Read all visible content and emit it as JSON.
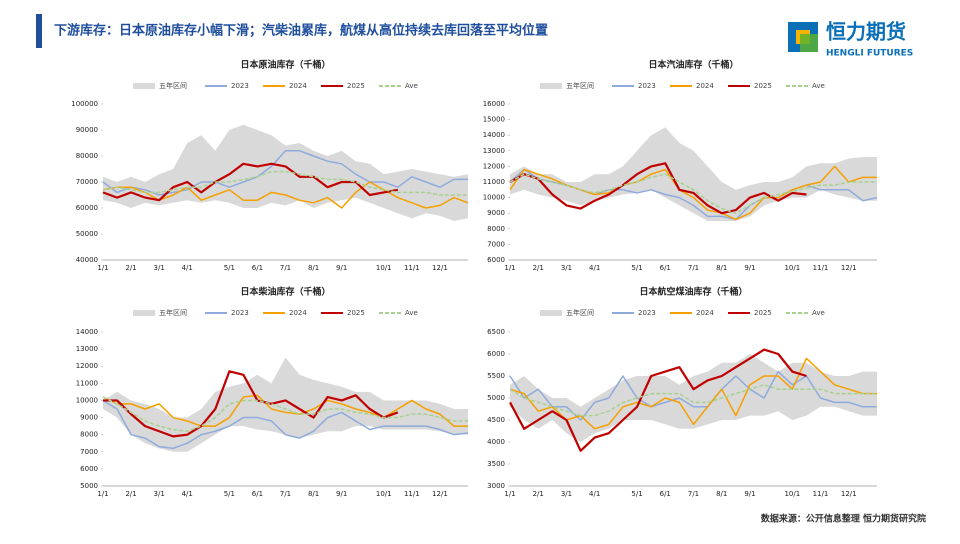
{
  "header": {
    "title": "下游库存：日本原油库存小幅下滑；汽柴油累库，航煤从高位持续去库回落至平均位置",
    "logo": "恒力期货",
    "logo_en": "HENGLI FUTURES"
  },
  "source": "数据来源：公开信息整理 恒力期货研究院",
  "chart_data": [
    {
      "type": "line",
      "title": "日本原油库存（千桶）",
      "categories": [
        "1/1",
        null,
        "2/1",
        null,
        "3/1",
        null,
        "4/1",
        null,
        null,
        "5/1",
        null,
        "6/1",
        null,
        "7/1",
        null,
        "8/1",
        null,
        "9/1",
        null,
        null,
        "10/1",
        null,
        "11/1",
        null,
        "12/1",
        null,
        null
      ],
      "ylim": [
        40000,
        100000
      ],
      "yticks": [
        40000,
        50000,
        60000,
        70000,
        80000,
        90000,
        100000
      ],
      "band": {
        "name": "五年区间",
        "color": "#d9d9d9",
        "high": [
          72000,
          70000,
          72000,
          70000,
          73000,
          75000,
          85000,
          88000,
          82000,
          90000,
          92000,
          90000,
          88000,
          84000,
          85000,
          82000,
          80000,
          82000,
          78000,
          77000,
          73000,
          74000,
          75000,
          74000,
          73000,
          72000,
          73000
        ],
        "low": [
          63000,
          62000,
          60000,
          62000,
          61000,
          62000,
          63000,
          62000,
          63000,
          62000,
          60000,
          60000,
          62000,
          61000,
          63000,
          60000,
          62000,
          63000,
          64000,
          62000,
          60000,
          58000,
          56000,
          58000,
          57000,
          55000,
          56000
        ]
      },
      "series": [
        {
          "name": "2023",
          "color": "#8faadc",
          "values": [
            70000,
            66000,
            68000,
            67000,
            65000,
            66000,
            67000,
            70000,
            70000,
            68000,
            70000,
            72000,
            76000,
            82000,
            82000,
            80000,
            78000,
            77000,
            73000,
            70000,
            70000,
            68000,
            72000,
            70000,
            68000,
            71000,
            71000
          ]
        },
        {
          "name": "2024",
          "color": "#f5a000",
          "values": [
            67000,
            68000,
            68000,
            66000,
            63000,
            65000,
            68000,
            63000,
            65000,
            67000,
            63000,
            63000,
            66000,
            65000,
            63000,
            62000,
            64000,
            60000,
            66000,
            70000,
            67000,
            64000,
            62000,
            60000,
            61000,
            64000,
            62000
          ]
        },
        {
          "name": "2025",
          "color": "#c00000",
          "values": [
            66000,
            64000,
            66000,
            64000,
            63000,
            68000,
            70000,
            66000,
            70000,
            73000,
            77000,
            76000,
            77000,
            76000,
            72000,
            72000,
            68000,
            70000,
            70000,
            65000,
            66000,
            67000,
            null,
            null,
            null,
            null,
            null
          ]
        },
        {
          "name": "Ave",
          "color": "#a9d18e",
          "dashed": true,
          "values": [
            67000,
            68000,
            67000,
            66000,
            66000,
            67000,
            68000,
            68000,
            70000,
            70000,
            71000,
            72000,
            74000,
            74000,
            73000,
            72000,
            71000,
            71000,
            70000,
            68000,
            67000,
            66000,
            66000,
            66000,
            65000,
            65000,
            65000
          ]
        }
      ]
    },
    {
      "type": "line",
      "title": "日本汽油库存（千桶）",
      "categories": [
        "1/1",
        null,
        "2/1",
        null,
        "3/1",
        null,
        "4/1",
        null,
        null,
        "5/1",
        null,
        "6/1",
        null,
        "7/1",
        null,
        "8/1",
        null,
        "9/1",
        null,
        null,
        "10/1",
        null,
        "11/1",
        null,
        "12/1",
        null,
        null
      ],
      "ylim": [
        6000,
        16000
      ],
      "yticks": [
        6000,
        7000,
        8000,
        9000,
        10000,
        11000,
        12000,
        13000,
        14000,
        15000,
        16000
      ],
      "band": {
        "name": "五年区间",
        "color": "#d9d9d9",
        "high": [
          11500,
          12000,
          11500,
          11500,
          11000,
          11000,
          11500,
          11500,
          12000,
          13000,
          14000,
          14500,
          13500,
          13000,
          12000,
          11000,
          10500,
          10800,
          11000,
          11000,
          11300,
          12000,
          12200,
          12200,
          12500,
          12600,
          12600
        ],
        "low": [
          10200,
          10500,
          10200,
          10000,
          9800,
          9500,
          9800,
          10000,
          10200,
          10300,
          10500,
          10000,
          9500,
          9000,
          8500,
          8500,
          8500,
          8800,
          9500,
          9800,
          10000,
          10000,
          10500,
          10200,
          10000,
          9800,
          9800
        ]
      },
      "series": [
        {
          "name": "2023",
          "color": "#8faadc",
          "values": [
            11000,
            11800,
            11200,
            11000,
            10800,
            10500,
            10200,
            10500,
            10500,
            10300,
            10500,
            10200,
            10000,
            9500,
            8800,
            8800,
            8600,
            9500,
            10000,
            10000,
            10500,
            10800,
            10500,
            10500,
            10500,
            9800,
            10000
          ]
        },
        {
          "name": "2024",
          "color": "#f5a000",
          "values": [
            10500,
            11800,
            11500,
            11200,
            10800,
            10500,
            10200,
            10300,
            10800,
            11000,
            11500,
            11800,
            10500,
            10000,
            9200,
            9000,
            8600,
            9000,
            10000,
            10000,
            10500,
            10800,
            11000,
            12000,
            11000,
            11300,
            11300
          ]
        },
        {
          "name": "2025",
          "color": "#c00000",
          "values": [
            11000,
            11500,
            11200,
            10200,
            9500,
            9300,
            9800,
            10200,
            10800,
            11500,
            12000,
            12200,
            10500,
            10300,
            9500,
            9000,
            9200,
            10000,
            10300,
            9800,
            10300,
            10200,
            null,
            null,
            null,
            null,
            null
          ]
        },
        {
          "name": "Ave",
          "color": "#a9d18e",
          "dashed": true,
          "values": [
            11000,
            11500,
            11200,
            11000,
            10800,
            10500,
            10300,
            10500,
            10800,
            11000,
            11300,
            11500,
            11000,
            10500,
            9800,
            9300,
            9000,
            9500,
            10000,
            10200,
            10400,
            10600,
            10800,
            10800,
            11000,
            11000,
            11000
          ]
        }
      ]
    },
    {
      "type": "line",
      "title": "日本柴油库存（千桶）",
      "categories": [
        "1/1",
        null,
        "2/1",
        null,
        "3/1",
        null,
        "4/1",
        null,
        null,
        "5/1",
        null,
        "6/1",
        null,
        "7/1",
        null,
        "8/1",
        null,
        "9/1",
        null,
        null,
        "10/1",
        null,
        "11/1",
        null,
        "12/1",
        null,
        null
      ],
      "ylim": [
        5000,
        14000
      ],
      "yticks": [
        5000,
        6000,
        7000,
        8000,
        9000,
        10000,
        11000,
        12000,
        13000,
        14000
      ],
      "band": {
        "name": "五年区间",
        "color": "#d9d9d9",
        "high": [
          10000,
          10500,
          10000,
          9800,
          9500,
          9000,
          9000,
          9500,
          10500,
          10800,
          11000,
          11500,
          11000,
          12500,
          11500,
          11200,
          11000,
          10800,
          10500,
          10500,
          10000,
          10000,
          10000,
          10000,
          9800,
          9500,
          9500
        ],
        "low": [
          9500,
          9000,
          8000,
          7500,
          7200,
          7000,
          7000,
          7500,
          8000,
          8500,
          8500,
          8300,
          8200,
          8000,
          7800,
          8000,
          8200,
          8200,
          8500,
          8500,
          8300,
          8300,
          8300,
          8300,
          8200,
          8000,
          8000
        ]
      },
      "series": [
        {
          "name": "2023",
          "color": "#8faadc",
          "values": [
            10000,
            9500,
            8000,
            7800,
            7300,
            7200,
            7500,
            8000,
            8200,
            8500,
            9000,
            9000,
            8800,
            8000,
            7800,
            8200,
            9000,
            9300,
            8800,
            8300,
            8500,
            8500,
            8500,
            8500,
            8300,
            8000,
            8100
          ]
        },
        {
          "name": "2024",
          "color": "#f5a000",
          "values": [
            10200,
            9800,
            9800,
            9500,
            9800,
            9000,
            8800,
            8500,
            8500,
            9000,
            10200,
            10300,
            9500,
            9300,
            9200,
            9500,
            10000,
            9800,
            9500,
            9300,
            9000,
            9500,
            10000,
            9500,
            9200,
            8500,
            8500
          ]
        },
        {
          "name": "2025",
          "color": "#c00000",
          "values": [
            10000,
            10000,
            9200,
            8500,
            8200,
            7900,
            8000,
            8500,
            9500,
            11700,
            11500,
            10000,
            9800,
            10000,
            9500,
            9000,
            10200,
            10000,
            10300,
            9500,
            9000,
            9300,
            null,
            null,
            null,
            null,
            null
          ]
        },
        {
          "name": "Ave",
          "color": "#a9d18e",
          "dashed": true,
          "values": [
            10200,
            9800,
            9300,
            8800,
            8500,
            8300,
            8200,
            8500,
            9000,
            9800,
            10000,
            10000,
            9800,
            9500,
            9200,
            9200,
            9500,
            9500,
            9300,
            9200,
            9000,
            9000,
            9200,
            9200,
            9000,
            8800,
            8800
          ]
        }
      ]
    },
    {
      "type": "line",
      "title": "日本航空煤油库存（千桶）",
      "categories": [
        "1/1",
        null,
        "2/1",
        null,
        "3/1",
        null,
        "4/1",
        null,
        null,
        "5/1",
        null,
        "6/1",
        null,
        "7/1",
        null,
        "8/1",
        null,
        "9/1",
        null,
        null,
        "10/1",
        null,
        "11/1",
        null,
        "12/1",
        null,
        null
      ],
      "ylim": [
        3000,
        6500
      ],
      "yticks": [
        3000,
        3500,
        4000,
        4500,
        5000,
        5500,
        6000,
        6500
      ],
      "band": {
        "name": "五年区间",
        "color": "#d9d9d9",
        "high": [
          5300,
          5500,
          5200,
          5000,
          5000,
          4800,
          5000,
          5200,
          5400,
          5500,
          5500,
          5500,
          5300,
          5500,
          5600,
          5800,
          5800,
          6000,
          5800,
          5600,
          5800,
          5800,
          5600,
          5500,
          5500,
          5600,
          5600
        ],
        "low": [
          4800,
          4500,
          4300,
          4500,
          4200,
          4000,
          4200,
          4300,
          4500,
          4500,
          4500,
          4400,
          4300,
          4300,
          4400,
          4500,
          4500,
          4600,
          4600,
          4700,
          4500,
          4600,
          4800,
          4800,
          4700,
          4600,
          4600
        ]
      },
      "series": [
        {
          "name": "2023",
          "color": "#8faadc",
          "values": [
            5500,
            5000,
            5200,
            4800,
            4800,
            4500,
            4900,
            5000,
            5500,
            5000,
            4800,
            4900,
            5000,
            4800,
            4800,
            5200,
            5500,
            5200,
            5000,
            5600,
            5300,
            5500,
            5000,
            4900,
            4900,
            4800,
            4800
          ]
        },
        {
          "name": "2024",
          "color": "#f5a000",
          "values": [
            5200,
            5100,
            4700,
            4800,
            4500,
            4600,
            4300,
            4400,
            4800,
            4900,
            4800,
            5000,
            4900,
            4400,
            4800,
            5200,
            4600,
            5300,
            5500,
            5500,
            5200,
            5900,
            5600,
            5300,
            5200,
            5100,
            5100
          ]
        },
        {
          "name": "2025",
          "color": "#c00000",
          "values": [
            4900,
            4300,
            4500,
            4700,
            4500,
            3800,
            4100,
            4200,
            4500,
            4800,
            5500,
            5600,
            5700,
            5200,
            5400,
            5500,
            5700,
            5900,
            6100,
            6000,
            5600,
            5500,
            null,
            null,
            null,
            null,
            null
          ]
        },
        {
          "name": "Ave",
          "color": "#a9d18e",
          "dashed": true,
          "values": [
            5200,
            5000,
            4900,
            4800,
            4700,
            4600,
            4600,
            4700,
            4900,
            5000,
            5100,
            5100,
            5100,
            4900,
            4900,
            5000,
            5100,
            5200,
            5300,
            5200,
            5200,
            5200,
            5200,
            5100,
            5100,
            5100,
            5100
          ]
        }
      ]
    }
  ]
}
